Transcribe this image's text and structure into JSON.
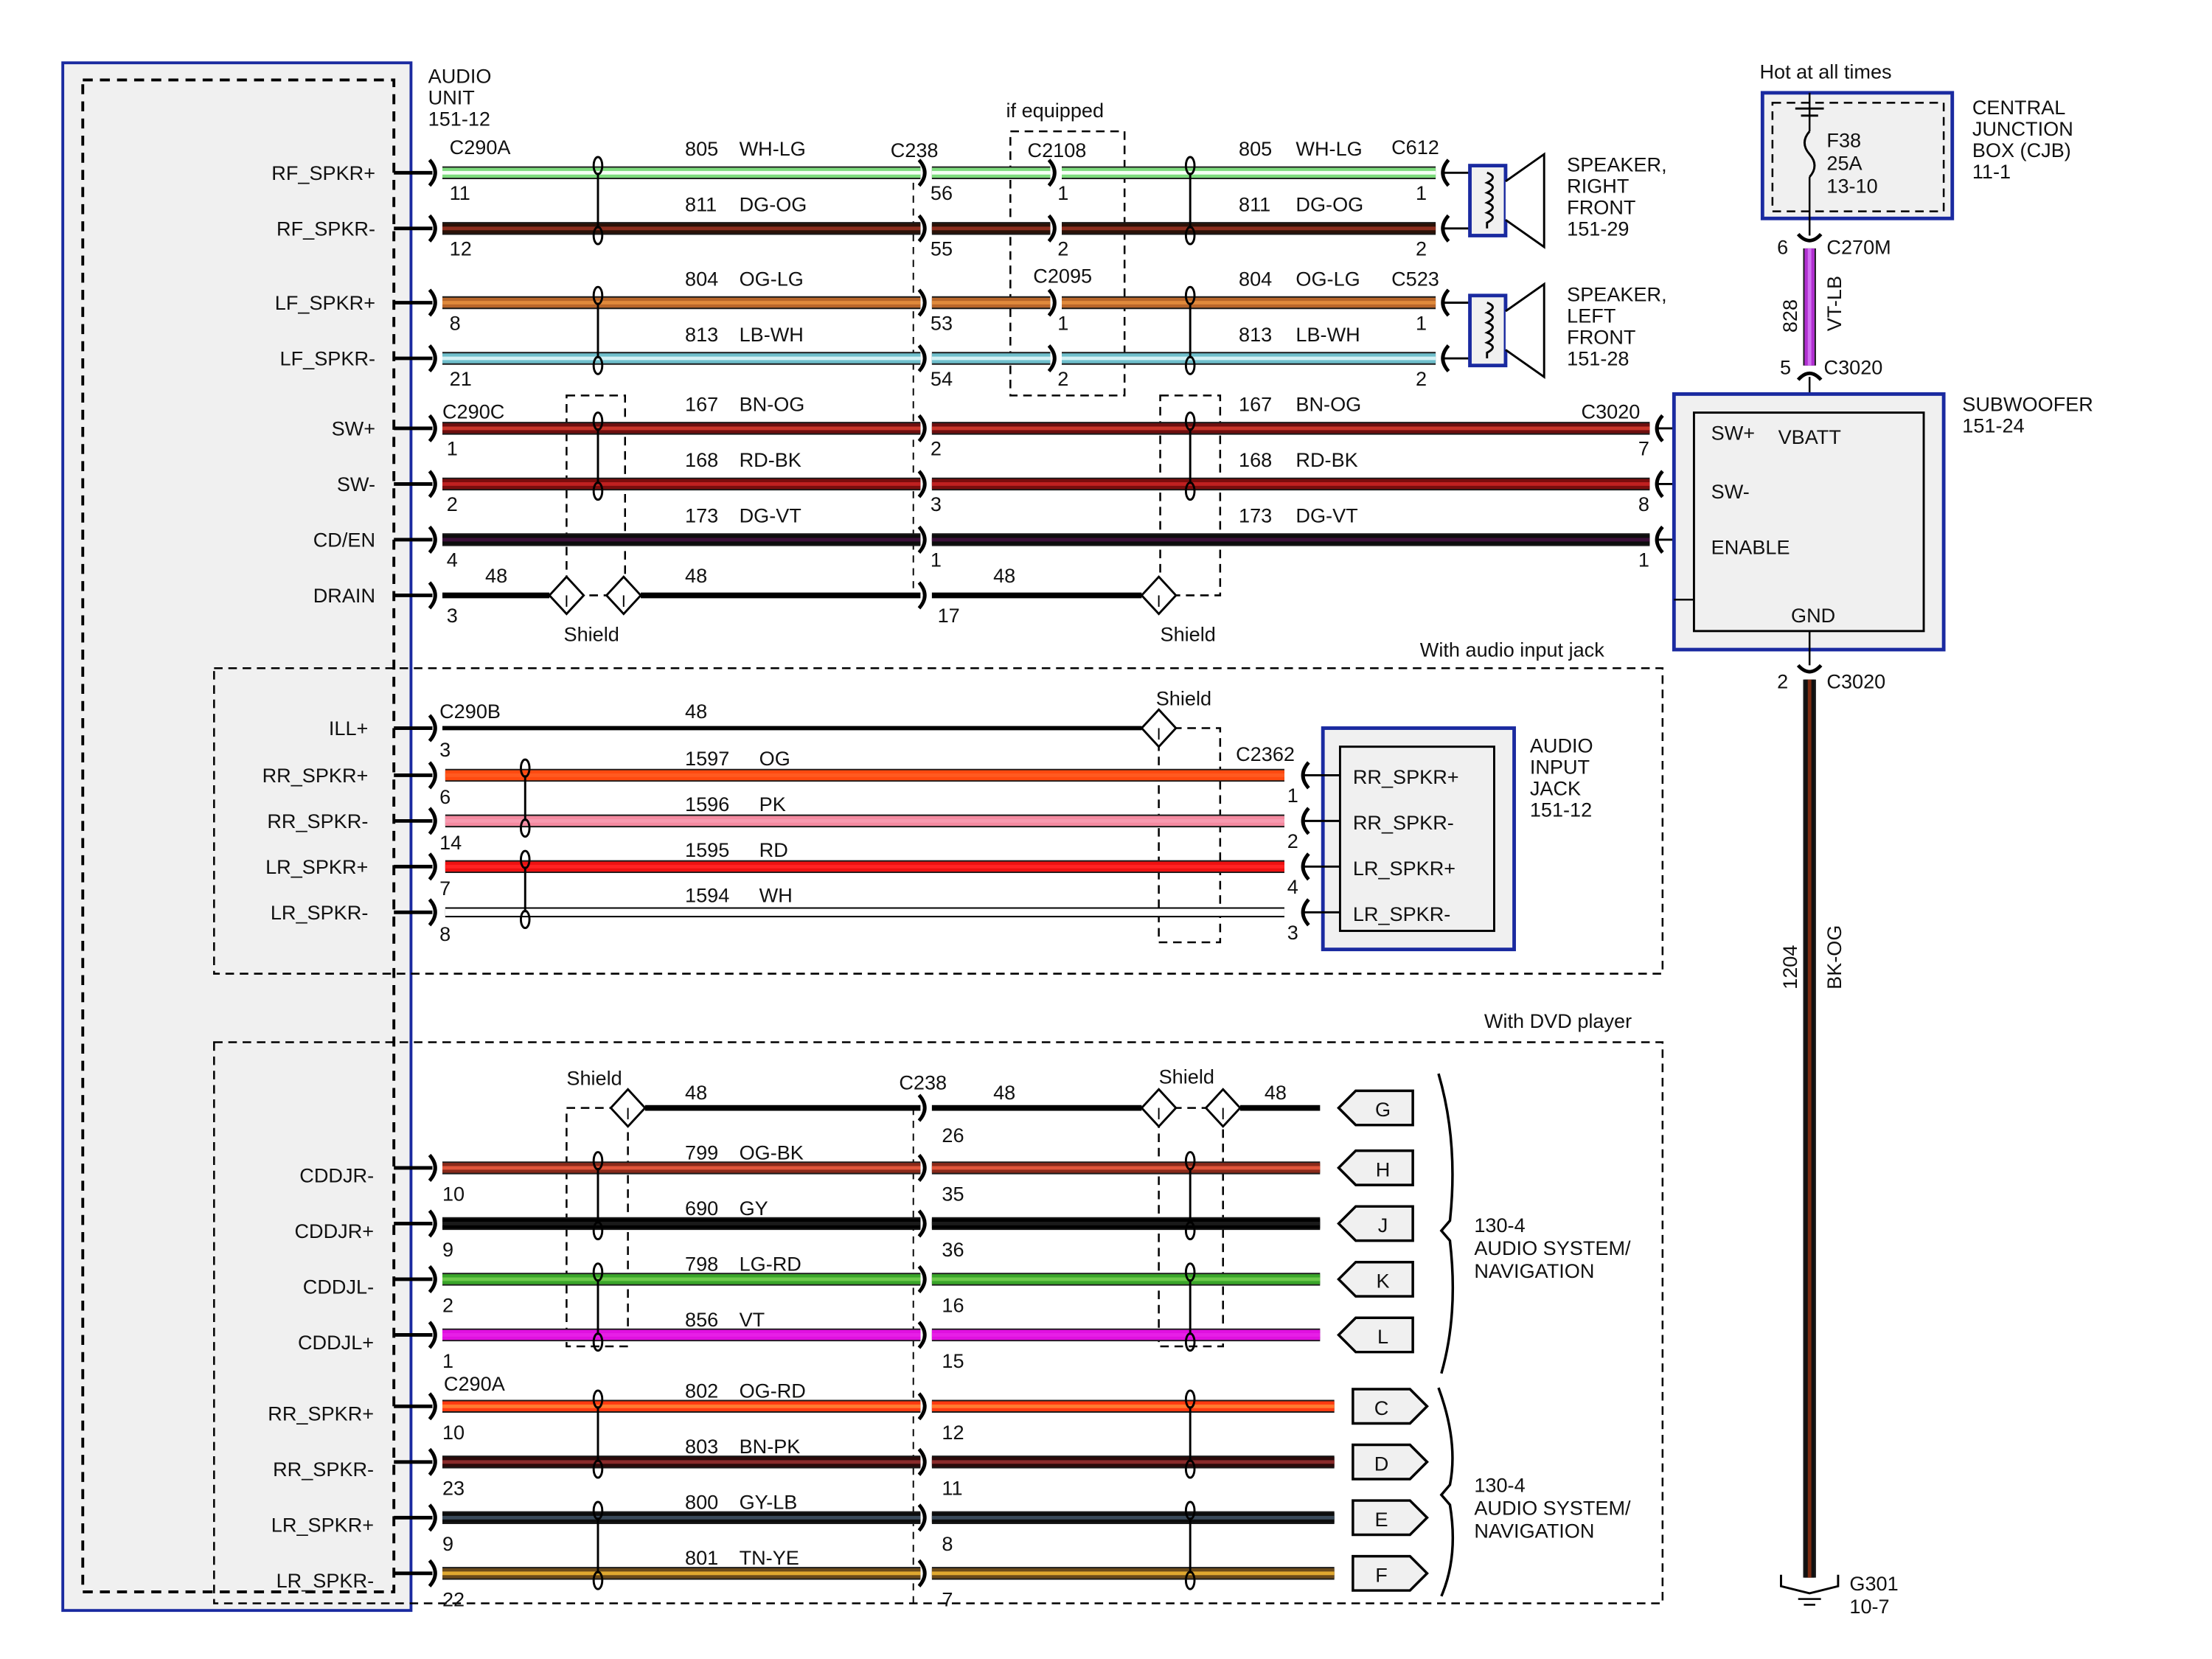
{
  "audio_unit": {
    "title": [
      "AUDIO",
      "UNIT",
      "151-12"
    ]
  },
  "notes": {
    "if_equipped": "if equipped",
    "audio_input_jack": "With audio input jack",
    "dvd_player": "With DVD player",
    "hot": "Hot at all times",
    "shield": "Shield"
  },
  "front": {
    "connectors": [
      "C290A",
      "C238",
      "C2108",
      "C2095",
      "C612",
      "C523",
      "C290C",
      "C3020"
    ],
    "wires": [
      {
        "signal": "RF_SPKR+",
        "circuit": "805",
        "color": "WH-LG",
        "pins": [
          "11",
          "56",
          "1",
          "1"
        ],
        "colors": {
          "base": "#7ddc7d",
          "stripe": "#f4fff4"
        }
      },
      {
        "signal": "RF_SPKR-",
        "circuit": "811",
        "color": "DG-OG",
        "pins": [
          "12",
          "55",
          "2",
          "2"
        ],
        "colors": {
          "base": "#2b1208",
          "stripe": "#8b2e1e"
        }
      },
      {
        "signal": "LF_SPKR+",
        "circuit": "804",
        "color": "OG-LG",
        "pins": [
          "8",
          "53",
          "1",
          "1"
        ],
        "colors": {
          "base": "#b8662a",
          "stripe": "#e08a3c"
        }
      },
      {
        "signal": "LF_SPKR-",
        "circuit": "813",
        "color": "LB-WH",
        "pins": [
          "21",
          "54",
          "2",
          "2"
        ],
        "colors": {
          "base": "#6fbfcc",
          "stripe": "#d4f1f5"
        }
      },
      {
        "signal": "SW+",
        "circuit": "167",
        "color": "BN-OG",
        "pins": [
          "1",
          "2",
          "7"
        ],
        "colors": {
          "base": "#6e0f0f",
          "stripe": "#c8352a"
        }
      },
      {
        "signal": "SW-",
        "circuit": "168",
        "color": "RD-BK",
        "pins": [
          "2",
          "3",
          "8"
        ],
        "colors": {
          "base": "#7a0d0d",
          "stripe": "#c02020"
        }
      },
      {
        "signal": "CD/EN",
        "circuit": "173",
        "color": "DG-VT",
        "pins": [
          "4",
          "1",
          "1"
        ],
        "colors": {
          "base": "#0d0d0d",
          "stripe": "#3a1038"
        }
      },
      {
        "signal": "DRAIN",
        "circuit": "48",
        "pins": [
          "3",
          "17"
        ],
        "colors": {
          "base": "#000000",
          "stripe": "#000000"
        }
      }
    ]
  },
  "speakers": [
    {
      "lines": [
        "SPEAKER,",
        "RIGHT",
        "FRONT",
        "151-29"
      ]
    },
    {
      "lines": [
        "SPEAKER,",
        "LEFT",
        "FRONT",
        "151-28"
      ]
    }
  ],
  "cjb": {
    "fuse": [
      "F38",
      "25A",
      "13-10"
    ],
    "lines": [
      "CENTRAL",
      "JUNCTION",
      "BOX (CJB)",
      "11-1"
    ]
  },
  "power_wire": {
    "circuit": "828",
    "color": "VT-LB",
    "pin_top": "6",
    "connector_top": "C270M",
    "pin_bottom": "5",
    "connector_bottom": "C3020",
    "colors": {
      "base": "#b030d0",
      "stripe": "#d070f0"
    }
  },
  "subwoofer": {
    "lines": [
      "SUBWOOFER",
      "151-24"
    ],
    "pins": {
      "sw_plus": "SW+",
      "vbatt": "VBATT",
      "sw_minus": "SW-",
      "enable": "ENABLE",
      "gnd": "GND"
    }
  },
  "ground_wire": {
    "circuit": "1204",
    "color": "BK-OG",
    "pin": "2",
    "connector": "C3020",
    "ground": [
      "G301",
      "10-7"
    ],
    "colors": {
      "base": "#111111",
      "stripe": "#7a2a10"
    }
  },
  "input_jack": {
    "connectors": [
      "C290B",
      "C2362"
    ],
    "wires": [
      {
        "signal": "ILL+",
        "circuit": "48",
        "pin": "3"
      },
      {
        "signal": "RR_SPKR+",
        "circuit": "1597",
        "color": "OG",
        "pin": "6",
        "jack_pin": "1",
        "colors": {
          "base": "#ff4a10",
          "stripe": "#ff5a20"
        }
      },
      {
        "signal": "RR_SPKR-",
        "circuit": "1596",
        "color": "PK",
        "pin": "14",
        "jack_pin": "2",
        "colors": {
          "base": "#f48aa0",
          "stripe": "#f79ab0"
        }
      },
      {
        "signal": "LR_SPKR+",
        "circuit": "1595",
        "color": "RD",
        "pin": "7",
        "jack_pin": "4",
        "colors": {
          "base": "#ee1111",
          "stripe": "#ff2222"
        }
      },
      {
        "signal": "LR_SPKR-",
        "circuit": "1594",
        "color": "WH",
        "pin": "8",
        "jack_pin": "3",
        "colors": {
          "base": "#ffffff",
          "stripe": "#ffffff"
        }
      }
    ],
    "device": {
      "lines": [
        "AUDIO",
        "INPUT",
        "JACK",
        "151-12"
      ],
      "pins": [
        "RR_SPKR+",
        "RR_SPKR-",
        "LR_SPKR+",
        "LR_SPKR-"
      ]
    }
  },
  "dvd": {
    "connectors": [
      "C238",
      "C290A"
    ],
    "wires": [
      {
        "signal": "",
        "circuit": "48",
        "pins": [
          "",
          "26"
        ],
        "connector": "G",
        "colors": {
          "base": "#000000",
          "stripe": "#000000"
        }
      },
      {
        "signal": "CDDJR-",
        "circuit": "799",
        "color": "OG-BK",
        "pins": [
          "10",
          "35"
        ],
        "connector": "H",
        "colors": {
          "base": "#8a2a1a",
          "stripe": "#e0553a"
        }
      },
      {
        "signal": "CDDJR+",
        "circuit": "690",
        "color": "GY",
        "pins": [
          "9",
          "36"
        ],
        "connector": "J",
        "colors": {
          "base": "#000000",
          "stripe": "#1a1a1a"
        }
      },
      {
        "signal": "CDDJL-",
        "circuit": "798",
        "color": "LG-RD",
        "pins": [
          "2",
          "16"
        ],
        "connector": "K",
        "colors": {
          "base": "#3aa52a",
          "stripe": "#6cc94a"
        }
      },
      {
        "signal": "CDDJL+",
        "circuit": "856",
        "color": "VT",
        "pins": [
          "1",
          "15"
        ],
        "connector": "L",
        "colors": {
          "base": "#e010e0",
          "stripe": "#e620e6"
        }
      },
      {
        "signal": "RR_SPKR+",
        "circuit": "802",
        "color": "OG-RD",
        "pins": [
          "10",
          "12"
        ],
        "connector": "C",
        "colors": {
          "base": "#ff3a10",
          "stripe": "#ff7a30"
        }
      },
      {
        "signal": "RR_SPKR-",
        "circuit": "803",
        "color": "BN-PK",
        "pins": [
          "23",
          "11"
        ],
        "connector": "D",
        "colors": {
          "base": "#2a0a0a",
          "stripe": "#8a2a2a"
        }
      },
      {
        "signal": "LR_SPKR+",
        "circuit": "800",
        "color": "GY-LB",
        "pins": [
          "9",
          "8"
        ],
        "connector": "E",
        "colors": {
          "base": "#0d0d0d",
          "stripe": "#3a4a5a"
        }
      },
      {
        "signal": "LR_SPKR-",
        "circuit": "801",
        "color": "TN-YE",
        "pins": [
          "22",
          "7"
        ],
        "connector": "F",
        "colors": {
          "base": "#6b4a1a",
          "stripe": "#e0a830"
        }
      }
    ],
    "destination": [
      "130-4",
      "AUDIO SYSTEM/",
      "NAVIGATION"
    ]
  },
  "colors": {
    "module_border": "#1a2aa0",
    "module_fill": "#f0f0f0"
  }
}
